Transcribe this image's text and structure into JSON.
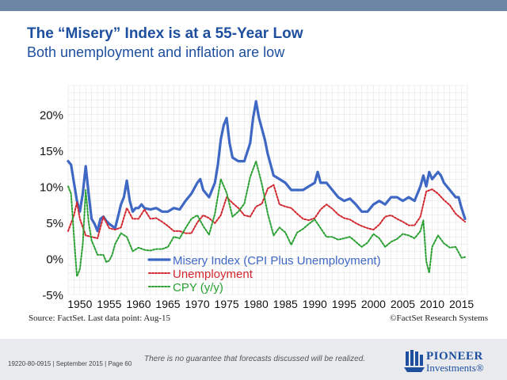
{
  "header": {
    "title": "The “Misery” Index is at a 55-Year Low",
    "subtitle": "Both unemployment and inflation are low"
  },
  "footer": {
    "source": "Source: FactSet. Last data point: Aug-15",
    "copyright": "©FactSet Research Systems",
    "disclaimer": "There is no guarantee that forecasts discussed will be realized.",
    "ref": "19220-80-0915 | September 2015 | Page 60",
    "logo_name": "PIONEER",
    "logo_sub": "Investments®"
  },
  "chart_data": {
    "type": "line",
    "title": "",
    "xlabel": "",
    "ylabel": "",
    "xlim": [
      1948,
      2016
    ],
    "ylim": [
      -5,
      24
    ],
    "x_ticks": [
      "1950",
      "1955",
      "1960",
      "1965",
      "1970",
      "1975",
      "1980",
      "1985",
      "1990",
      "1995",
      "2000",
      "2005",
      "2010",
      "2015"
    ],
    "y_ticks": [
      -5,
      0,
      5,
      10,
      15,
      20
    ],
    "y_tick_labels": [
      "-5%",
      "0%",
      "5%",
      "10%",
      "15%",
      "20%"
    ],
    "grid": true,
    "legend_position": "bottom-left",
    "series": [
      {
        "name": "Misery Index (CPI Plus Unemployment)",
        "color": "#3f68c5",
        "style": "solid",
        "x": [
          1948,
          1948.5,
          1949,
          1949.5,
          1950,
          1950.5,
          1951,
          1951.5,
          1952,
          1952.5,
          1953,
          1953.5,
          1954,
          1954.5,
          1955,
          1955.5,
          1956,
          1956.5,
          1957,
          1957.5,
          1958,
          1958.5,
          1959,
          1959.5,
          1960,
          1960.5,
          1961,
          1962,
          1963,
          1964,
          1965,
          1966,
          1967,
          1968,
          1969,
          1970,
          1970.5,
          1971,
          1972,
          1973,
          1973.5,
          1974,
          1974.5,
          1975,
          1975.5,
          1976,
          1977,
          1978,
          1979,
          1979.5,
          1980,
          1980.5,
          1981,
          1981.5,
          1982,
          1982.5,
          1983,
          1984,
          1985,
          1986,
          1987,
          1988,
          1989,
          1990,
          1990.5,
          1991,
          1992,
          1993,
          1994,
          1995,
          1996,
          1997,
          1998,
          1999,
          2000,
          2001,
          2002,
          2003,
          2004,
          2005,
          2006,
          2007,
          2008,
          2008.5,
          2009,
          2009.5,
          2010,
          2011,
          2011.5,
          2012,
          2013,
          2014,
          2014.5,
          2015,
          2015.6
        ],
        "values": [
          13.5,
          13.0,
          10.5,
          8.0,
          6.5,
          9.0,
          12.8,
          9.0,
          5.5,
          4.8,
          3.8,
          5.5,
          5.8,
          5.2,
          4.8,
          4.5,
          4.2,
          5.8,
          7.5,
          8.5,
          10.8,
          8.0,
          6.5,
          7.0,
          7.0,
          7.5,
          7.0,
          6.8,
          7.0,
          6.5,
          6.5,
          7.0,
          6.8,
          8.0,
          9.0,
          10.5,
          11.0,
          9.5,
          8.5,
          10.5,
          13.0,
          16.5,
          18.5,
          19.5,
          16.0,
          14.0,
          13.5,
          13.5,
          16.0,
          19.5,
          21.8,
          19.5,
          18.0,
          16.5,
          14.5,
          13.0,
          11.5,
          11.0,
          10.5,
          9.5,
          9.5,
          9.5,
          10.0,
          10.5,
          12.0,
          10.5,
          10.5,
          9.5,
          8.5,
          8.0,
          8.3,
          7.5,
          6.5,
          6.5,
          7.5,
          8.0,
          7.5,
          8.5,
          8.5,
          8.0,
          8.5,
          8.0,
          10.0,
          11.5,
          10.0,
          12.0,
          11.0,
          12.0,
          11.5,
          10.5,
          9.5,
          8.5,
          8.5,
          7.0,
          5.5
        ]
      },
      {
        "name": "Unemployment",
        "color": "#d1282f",
        "style": "dotted",
        "x": [
          1948,
          1949,
          1949.5,
          1950,
          1951,
          1952,
          1953,
          1954,
          1955,
          1956,
          1957,
          1958,
          1959,
          1960,
          1961,
          1962,
          1963,
          1964,
          1965,
          1966,
          1967,
          1968,
          1969,
          1970,
          1971,
          1972,
          1973,
          1974,
          1975,
          1976,
          1977,
          1978,
          1979,
          1980,
          1981,
          1982,
          1983,
          1984,
          1985,
          1986,
          1987,
          1988,
          1989,
          1990,
          1991,
          1992,
          1993,
          1994,
          1995,
          1996,
          1997,
          1998,
          1999,
          2000,
          2001,
          2002,
          2003,
          2004,
          2005,
          2006,
          2007,
          2008,
          2009,
          2010,
          2011,
          2012,
          2013,
          2014,
          2015,
          2015.6
        ],
        "values": [
          3.8,
          6.0,
          7.8,
          5.5,
          3.2,
          3.0,
          2.8,
          5.8,
          4.2,
          4.0,
          4.3,
          7.0,
          5.5,
          5.5,
          6.8,
          5.5,
          5.6,
          5.1,
          4.5,
          3.8,
          3.8,
          3.5,
          3.5,
          5.0,
          6.0,
          5.6,
          4.9,
          6.0,
          8.5,
          7.7,
          7.0,
          6.0,
          5.8,
          7.2,
          7.6,
          9.7,
          10.2,
          7.5,
          7.2,
          7.0,
          6.2,
          5.5,
          5.3,
          5.6,
          6.8,
          7.5,
          6.9,
          6.1,
          5.6,
          5.4,
          4.9,
          4.5,
          4.2,
          4.0,
          4.7,
          5.8,
          6.0,
          5.5,
          5.1,
          4.6,
          4.6,
          5.8,
          9.3,
          9.6,
          9.0,
          8.1,
          7.4,
          6.2,
          5.5,
          5.1
        ]
      },
      {
        "name": "CPY (y/y)",
        "color": "#2aa033",
        "style": "dotted",
        "x": [
          1948,
          1948.5,
          1949,
          1949.5,
          1950,
          1950.5,
          1951,
          1951.5,
          1952,
          1952.5,
          1953,
          1954,
          1954.5,
          1955,
          1955.5,
          1956,
          1957,
          1958,
          1959,
          1960,
          1961,
          1962,
          1963,
          1964,
          1965,
          1966,
          1967,
          1968,
          1969,
          1970,
          1971,
          1972,
          1973,
          1974,
          1975,
          1976,
          1977,
          1978,
          1979,
          1980,
          1981,
          1982,
          1983,
          1984,
          1985,
          1986,
          1987,
          1988,
          1989,
          1990,
          1991,
          1992,
          1993,
          1994,
          1995,
          1996,
          1997,
          1998,
          1999,
          2000,
          2001,
          2002,
          2003,
          2004,
          2005,
          2006,
          2007,
          2008,
          2008.5,
          2009,
          2009.5,
          2010,
          2011,
          2012,
          2013,
          2014,
          2015,
          2015.6
        ],
        "values": [
          10.0,
          9.0,
          3.0,
          -2.5,
          -1.5,
          2.0,
          9.5,
          5.0,
          2.5,
          1.5,
          0.5,
          0.5,
          -0.5,
          -0.3,
          0.5,
          2.0,
          3.5,
          3.0,
          1.0,
          1.5,
          1.2,
          1.1,
          1.3,
          1.3,
          1.6,
          3.0,
          2.8,
          4.2,
          5.5,
          6.0,
          4.5,
          3.3,
          6.2,
          11.0,
          9.1,
          5.8,
          6.5,
          7.6,
          11.3,
          13.5,
          10.3,
          6.2,
          3.2,
          4.3,
          3.6,
          1.9,
          3.6,
          4.1,
          4.8,
          5.4,
          4.2,
          3.0,
          3.0,
          2.6,
          2.8,
          3.0,
          2.3,
          1.6,
          2.2,
          3.4,
          2.8,
          1.6,
          2.3,
          2.7,
          3.4,
          3.2,
          2.8,
          3.8,
          5.3,
          -0.4,
          -2.0,
          1.6,
          3.2,
          2.1,
          1.5,
          1.6,
          0.1,
          0.2
        ]
      }
    ]
  }
}
